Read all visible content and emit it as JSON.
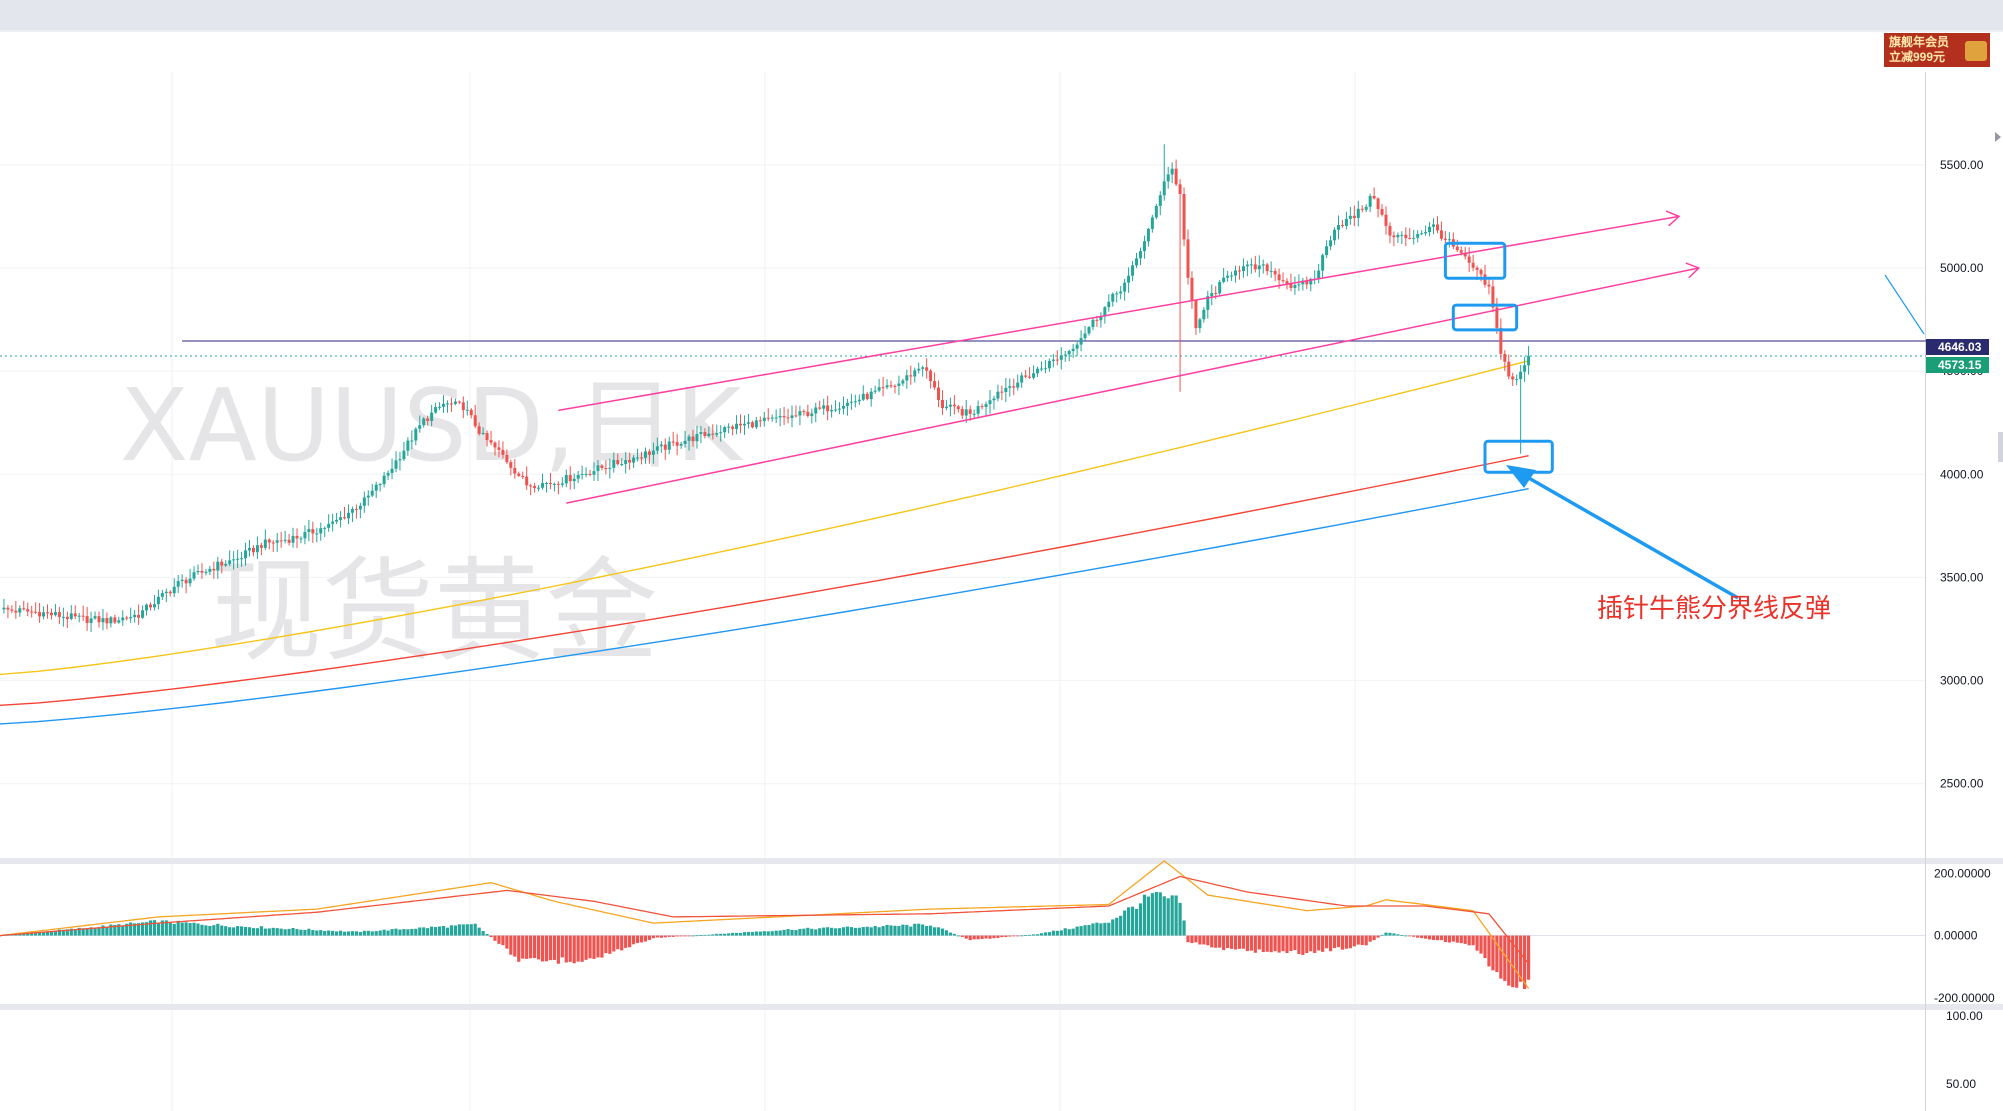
{
  "header": {
    "ad_line1": "旗舰年会员",
    "ad_line2": "立减999元"
  },
  "watermark": {
    "symbol": "XAUUSD,日K",
    "name": "现货黄金"
  },
  "annotation": {
    "text": "插针牛熊分界线反弹"
  },
  "price_tags": {
    "horizontal_line": "4646.03",
    "last_price": "4573.15"
  },
  "colors": {
    "up": "#26a69a",
    "down": "#ef5350",
    "ma_yellow": "#f5c518",
    "ma_red": "#f44336",
    "ma_blue": "#2196f3",
    "channel": "#ff3fa0",
    "hline": "#5b4e9c",
    "highlight": "#1e9bf0",
    "tag_hline_bg": "#2a2a6e",
    "tag_last_bg": "#1a9e78"
  },
  "chart_data": [
    {
      "type": "candlestick",
      "symbol": "XAUUSD",
      "timeframe": "日K",
      "y_ticks": [
        5500,
        5000,
        4500,
        4000,
        3500,
        3000,
        2500
      ],
      "y_tick_labels": [
        "5500.00",
        "5000.00",
        "4500.00",
        "4000.00",
        "3500.00",
        "3000.00",
        "2500.00"
      ],
      "ylim": [
        2140,
        5950
      ],
      "horizontal_line": 4646.03,
      "last_price": 4573.15,
      "close_path": [
        [
          0,
          3345
        ],
        [
          10,
          3330
        ],
        [
          20,
          3300
        ],
        [
          28,
          3290
        ],
        [
          35,
          3320
        ],
        [
          45,
          3470
        ],
        [
          55,
          3560
        ],
        [
          60,
          3590
        ],
        [
          66,
          3660
        ],
        [
          76,
          3700
        ],
        [
          84,
          3760
        ],
        [
          92,
          3870
        ],
        [
          97,
          3980
        ],
        [
          102,
          4120
        ],
        [
          107,
          4260
        ],
        [
          112,
          4340
        ],
        [
          117,
          4330
        ],
        [
          122,
          4180
        ],
        [
          127,
          4090
        ],
        [
          133,
          3950
        ],
        [
          140,
          3960
        ],
        [
          150,
          4020
        ],
        [
          160,
          4080
        ],
        [
          172,
          4160
        ],
        [
          185,
          4230
        ],
        [
          200,
          4280
        ],
        [
          215,
          4350
        ],
        [
          227,
          4440
        ],
        [
          233,
          4530
        ],
        [
          238,
          4330
        ],
        [
          245,
          4290
        ],
        [
          252,
          4400
        ],
        [
          260,
          4480
        ],
        [
          270,
          4600
        ],
        [
          277,
          4760
        ],
        [
          285,
          4950
        ],
        [
          291,
          5230
        ],
        [
          294,
          5430
        ],
        [
          296,
          5480
        ],
        [
          298,
          5350
        ],
        [
          300,
          4950
        ],
        [
          302,
          4700
        ],
        [
          305,
          4850
        ],
        [
          312,
          5000
        ],
        [
          320,
          5000
        ],
        [
          327,
          4900
        ],
        [
          332,
          4950
        ],
        [
          337,
          5200
        ],
        [
          342,
          5250
        ],
        [
          347,
          5350
        ],
        [
          351,
          5150
        ],
        [
          356,
          5150
        ],
        [
          362,
          5200
        ],
        [
          368,
          5080
        ],
        [
          372,
          5000
        ],
        [
          376,
          4900
        ],
        [
          379,
          4600
        ],
        [
          381,
          4480
        ],
        [
          383,
          4450
        ],
        [
          386,
          4573.15
        ]
      ],
      "moving_averages": [
        {
          "color": "yellow",
          "start": [
            0,
            3030
          ],
          "end": [
            386,
            4550
          ]
        },
        {
          "color": "red",
          "start": [
            0,
            2880
          ],
          "end": [
            386,
            4090
          ]
        },
        {
          "color": "blue",
          "start": [
            0,
            2790
          ],
          "end": [
            386,
            3930
          ]
        }
      ],
      "channel_lines": [
        {
          "from": [
            141,
            4310
          ],
          "to": [
            424,
            5250
          ]
        },
        {
          "from": [
            143,
            3860
          ],
          "to": [
            429,
            5000
          ]
        }
      ],
      "highlight_boxes": [
        {
          "x_range": [
            365,
            380
          ],
          "y_range": [
            4950,
            5120
          ]
        },
        {
          "x_range": [
            367,
            383
          ],
          "y_range": [
            4700,
            4820
          ]
        },
        {
          "x_range": [
            375,
            392
          ],
          "y_range": [
            4010,
            4160
          ]
        }
      ],
      "annotation": "插针牛熊分界线反弹"
    },
    {
      "type": "bar",
      "indicator": "MACD",
      "y_tick_labels": [
        "200.00000",
        "0.00000",
        "-200.00000"
      ],
      "ylim": [
        -220,
        230
      ],
      "histogram_key_points": [
        [
          0,
          0
        ],
        [
          40,
          45
        ],
        [
          60,
          30
        ],
        [
          90,
          12
        ],
        [
          120,
          35
        ],
        [
          132,
          -85
        ],
        [
          150,
          -75
        ],
        [
          165,
          -8
        ],
        [
          200,
          20
        ],
        [
          235,
          35
        ],
        [
          245,
          -15
        ],
        [
          262,
          5
        ],
        [
          280,
          45
        ],
        [
          291,
          130
        ],
        [
          298,
          110
        ],
        [
          300,
          -20
        ],
        [
          310,
          -45
        ],
        [
          330,
          -55
        ],
        [
          345,
          -30
        ],
        [
          350,
          10
        ],
        [
          360,
          -10
        ],
        [
          372,
          -30
        ],
        [
          378,
          -130
        ],
        [
          382,
          -180
        ],
        [
          386,
          -160
        ]
      ],
      "dif_key_points": [
        [
          0,
          0
        ],
        [
          40,
          60
        ],
        [
          80,
          85
        ],
        [
          124,
          170
        ],
        [
          140,
          110
        ],
        [
          165,
          40
        ],
        [
          235,
          85
        ],
        [
          280,
          100
        ],
        [
          294,
          240
        ],
        [
          305,
          130
        ],
        [
          330,
          80
        ],
        [
          345,
          95
        ],
        [
          350,
          115
        ],
        [
          372,
          80
        ],
        [
          386,
          -170
        ]
      ],
      "dea_key_points": [
        [
          0,
          0
        ],
        [
          40,
          40
        ],
        [
          80,
          75
        ],
        [
          128,
          145
        ],
        [
          150,
          110
        ],
        [
          170,
          60
        ],
        [
          235,
          70
        ],
        [
          280,
          95
        ],
        [
          298,
          190
        ],
        [
          315,
          140
        ],
        [
          340,
          95
        ],
        [
          360,
          95
        ],
        [
          376,
          70
        ],
        [
          386,
          -90
        ]
      ]
    },
    {
      "type": "line",
      "indicator": "RSI",
      "y_tick_labels": [
        "100.00",
        "50.00"
      ]
    }
  ]
}
